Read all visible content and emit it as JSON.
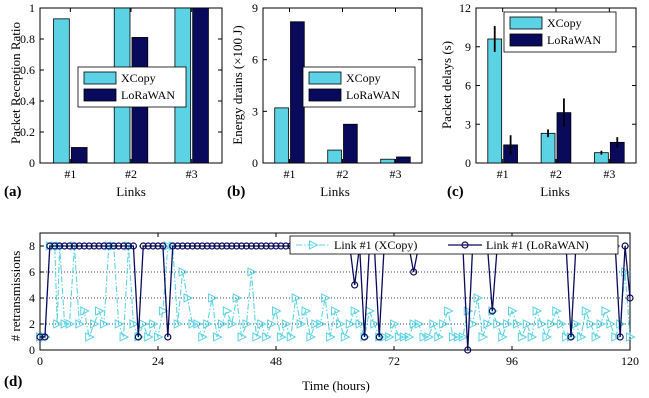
{
  "colors": {
    "xcopy": "#5bd3e4",
    "lorawan": "#0a0a5c",
    "axis": "#000000",
    "grid": "#000000"
  },
  "chart_data": [
    {
      "type": "bar",
      "panel_letter": "(a)",
      "xlabel": "Links",
      "ylabel": "Packet Reception Ratio",
      "categories": [
        "#1",
        "#2",
        "#3"
      ],
      "ylim": [
        0,
        1
      ],
      "yticks": [
        "0",
        "0.2",
        "0.4",
        "0.6",
        "0.8",
        "1"
      ],
      "legend": "inside-center-right",
      "series": [
        {
          "name": "XCopy",
          "values": [
            0.93,
            1.0,
            1.0
          ]
        },
        {
          "name": "LoRaWAN",
          "values": [
            0.1,
            0.81,
            1.0
          ]
        }
      ]
    },
    {
      "type": "bar",
      "panel_letter": "(b)",
      "xlabel": "Links",
      "ylabel": "Energy drains (×100 J)",
      "categories": [
        "#1",
        "#2",
        "#3"
      ],
      "ylim": [
        0,
        9
      ],
      "yticks": [
        "0",
        "3",
        "6",
        "9"
      ],
      "legend": "inside-center-right",
      "series": [
        {
          "name": "XCopy",
          "values": [
            3.2,
            0.75,
            0.22
          ]
        },
        {
          "name": "LoRaWAN",
          "values": [
            8.2,
            2.25,
            0.35
          ]
        }
      ]
    },
    {
      "type": "bar",
      "panel_letter": "(c)",
      "xlabel": "Links",
      "ylabel": "Packet delays (s)",
      "categories": [
        "#1",
        "#2",
        "#3"
      ],
      "ylim": [
        0,
        12
      ],
      "yticks": [
        "0",
        "3",
        "6",
        "9",
        "12"
      ],
      "legend": "top-right",
      "series": [
        {
          "name": "XCopy",
          "values": [
            9.6,
            2.3,
            0.8
          ],
          "errors": [
            1.0,
            0.3,
            0.15
          ]
        },
        {
          "name": "LoRaWAN",
          "values": [
            1.4,
            3.9,
            1.6
          ],
          "errors": [
            0.75,
            1.1,
            0.4
          ]
        }
      ]
    },
    {
      "type": "line",
      "panel_letter": "(d)",
      "xlabel": "Time (hours)",
      "ylabel": "# retransmissions",
      "xlim": [
        0,
        120
      ],
      "ylim": [
        0,
        9
      ],
      "xticks": [
        "0",
        "24",
        "48",
        "72",
        "96",
        "120"
      ],
      "yticks": [
        "0",
        "2",
        "4",
        "6",
        "8"
      ],
      "grid": "horizontal-dotted",
      "legend": "top-right",
      "series": [
        {
          "name": "Link #1 (XCopy)",
          "x": [
            0,
            1,
            2,
            3,
            3.5,
            4,
            5,
            6,
            7,
            8,
            9,
            10,
            11,
            12,
            13,
            14,
            15,
            16,
            17,
            18,
            19,
            20,
            21,
            22,
            23,
            24,
            25,
            26,
            27,
            28,
            29,
            30,
            31,
            32,
            33,
            34,
            35,
            36,
            37,
            38,
            39,
            40,
            41,
            42,
            43,
            44,
            45,
            46,
            47,
            48,
            49,
            50,
            51,
            52,
            53,
            54,
            55,
            56,
            57,
            58,
            59,
            60,
            61,
            62,
            63,
            64,
            65,
            66,
            67,
            68,
            69,
            70,
            71,
            72,
            73,
            74,
            75,
            76,
            77,
            78,
            79,
            80,
            81,
            82,
            83,
            84,
            85,
            86,
            87,
            88,
            89,
            90,
            91,
            92,
            93,
            94,
            95,
            96,
            97,
            98,
            99,
            100,
            101,
            102,
            103,
            104,
            105,
            106,
            107,
            108,
            109,
            110,
            111,
            112,
            113,
            114,
            115,
            116,
            117,
            118,
            119,
            120
          ],
          "values": [
            1,
            1,
            8,
            8,
            2,
            8,
            2,
            2,
            8,
            2,
            3,
            1,
            2,
            3,
            2,
            8,
            8,
            2,
            1,
            8,
            2,
            1,
            2,
            1,
            2,
            1,
            3,
            8,
            8,
            2,
            6,
            4,
            2,
            2,
            1,
            2,
            4,
            1,
            2,
            3,
            2,
            4,
            1,
            2,
            6,
            1,
            2,
            1,
            2,
            3,
            1,
            2,
            1,
            4,
            2,
            3,
            1,
            2,
            2,
            4,
            1,
            3,
            2,
            1,
            2,
            3,
            2,
            1,
            3,
            2,
            1,
            1,
            1,
            2,
            1,
            1,
            1,
            2,
            2,
            1,
            1,
            2,
            1,
            2,
            3,
            1,
            1,
            1,
            3,
            2,
            4,
            1,
            2,
            3,
            2,
            1,
            2,
            3,
            2,
            1,
            2,
            1,
            3,
            2,
            1,
            2,
            3,
            2,
            1,
            1,
            2,
            1,
            3,
            2,
            1,
            2,
            3,
            2,
            1,
            2,
            6,
            1
          ]
        },
        {
          "name": "Link #1 (LoRaWAN)",
          "x": [
            0,
            1,
            2,
            3,
            4,
            5,
            6,
            7,
            8,
            9,
            10,
            11,
            12,
            13,
            14,
            15,
            16,
            17,
            18,
            19,
            20,
            21,
            22,
            23,
            24,
            25,
            26,
            27,
            28,
            29,
            30,
            31,
            32,
            33,
            34,
            35,
            36,
            37,
            38,
            39,
            40,
            41,
            42,
            43,
            44,
            45,
            46,
            47,
            48,
            49,
            50,
            51,
            52,
            53,
            54,
            55,
            56,
            57,
            58,
            59,
            60,
            61,
            62,
            63,
            64,
            65,
            66,
            67,
            68,
            69,
            70,
            71,
            72,
            73,
            74,
            75,
            76,
            77,
            78,
            79,
            80,
            81,
            82,
            83,
            84,
            85,
            86,
            87,
            88,
            89,
            90,
            91,
            92,
            93,
            94,
            95,
            96,
            97,
            98,
            99,
            100,
            101,
            102,
            103,
            104,
            105,
            106,
            107,
            108,
            109,
            110,
            111,
            112,
            113,
            114,
            115,
            116,
            117,
            118,
            119,
            120
          ],
          "values": [
            1,
            1,
            8,
            8,
            8,
            8,
            8,
            8,
            8,
            8,
            8,
            8,
            8,
            8,
            8,
            8,
            8,
            8,
            8,
            8,
            1,
            8,
            8,
            8,
            8,
            8,
            1,
            8,
            8,
            8,
            8,
            8,
            8,
            8,
            8,
            8,
            8,
            8,
            8,
            8,
            8,
            8,
            8,
            8,
            8,
            8,
            8,
            8,
            8,
            8,
            8,
            8,
            8,
            8,
            8,
            8,
            8,
            8,
            8,
            8,
            8,
            8,
            8,
            8,
            5,
            8,
            1,
            8,
            8,
            1,
            8,
            8,
            8,
            8,
            8,
            8,
            6,
            8,
            8,
            8,
            8,
            8,
            8,
            8,
            8,
            8,
            8,
            0,
            8,
            8,
            8,
            8,
            3,
            8,
            8,
            8,
            8,
            8,
            8,
            8,
            8,
            8,
            8,
            8,
            8,
            8,
            8,
            8,
            1,
            8,
            8,
            8,
            8,
            8,
            8,
            8,
            8,
            8,
            1,
            8,
            4
          ]
        }
      ]
    }
  ]
}
